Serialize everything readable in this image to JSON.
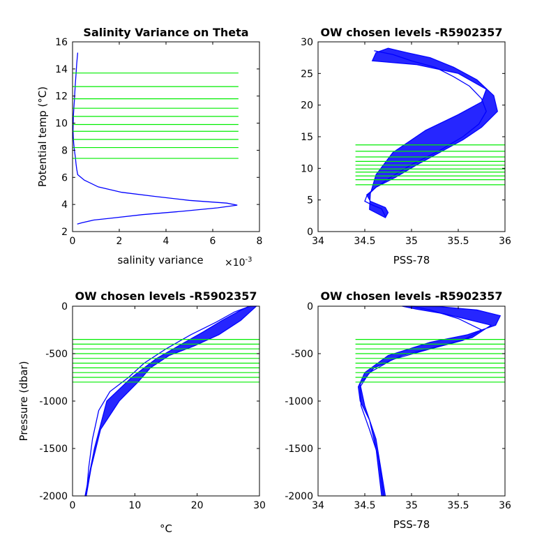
{
  "figure": {
    "background": "#ffffff",
    "level_color": "#00ee00",
    "profile_color": "#0000ff"
  },
  "chart_data": [
    {
      "id": "ax1",
      "type": "line",
      "title": "Salinity Variance on Theta",
      "xlabel": "salinity variance",
      "xexponent": "×10",
      "xexponent_power": "-3",
      "ylabel": "Potential temp (°C)",
      "xlim": [
        0,
        8
      ],
      "ylim": [
        2,
        16
      ],
      "xticks": [
        "0",
        "2",
        "4",
        "6",
        "8"
      ],
      "xtick_values": [
        0,
        2,
        4,
        6,
        8
      ],
      "yticks": [
        "2",
        "4",
        "6",
        "8",
        "10",
        "12",
        "14",
        "16"
      ],
      "ytick_values": [
        2,
        4,
        6,
        8,
        10,
        12,
        14,
        16
      ],
      "xdir": "normal",
      "grid": false,
      "hlines": {
        "range": [
          0,
          7.1
        ],
        "values": [
          7.4,
          8.2,
          8.8,
          9.4,
          9.9,
          10.5,
          11.1,
          11.8,
          12.7,
          13.7
        ]
      },
      "series": [
        {
          "x": [
            0.22,
            0.18,
            0.15,
            0.12,
            0.1,
            0.08,
            0.06,
            0.04,
            0.03,
            0.02,
            0.03,
            0.05,
            0.08,
            0.12,
            0.15,
            0.18,
            0.22,
            0.5,
            1.1,
            2.1,
            3.5,
            5.0,
            6.6,
            7.05,
            6.2,
            4.7,
            3.0,
            1.7,
            0.9,
            0.4,
            0.2
          ],
          "y": [
            15.2,
            14.4,
            13.6,
            12.9,
            12.3,
            11.7,
            11.2,
            10.6,
            10.1,
            9.5,
            9.0,
            8.5,
            8.0,
            7.5,
            7.0,
            6.6,
            6.2,
            5.8,
            5.3,
            4.9,
            4.6,
            4.3,
            4.1,
            3.95,
            3.75,
            3.5,
            3.25,
            3.0,
            2.85,
            2.65,
            2.55
          ]
        }
      ]
    },
    {
      "id": "ax2",
      "type": "line",
      "title": "OW chosen levels -R5902357",
      "xlabel": "PSS-78",
      "ylabel": "",
      "xlim": [
        34,
        36
      ],
      "ylim": [
        0,
        30
      ],
      "xticks": [
        "34",
        "34.5",
        "35",
        "35.5",
        "36"
      ],
      "xtick_values": [
        34,
        34.5,
        35,
        35.5,
        36
      ],
      "yticks": [
        "0",
        "5",
        "10",
        "15",
        "20",
        "25",
        "30"
      ],
      "ytick_values": [
        0,
        5,
        10,
        15,
        20,
        25,
        30
      ],
      "xdir": "normal",
      "grid": false,
      "hlines": {
        "range": [
          34.4,
          36
        ],
        "values": [
          7.4,
          8.2,
          8.8,
          9.4,
          9.9,
          10.5,
          11.1,
          11.8,
          12.7,
          13.7
        ]
      },
      "envelope": {
        "x": [
          34.72,
          34.75,
          34.72,
          34.64,
          34.56,
          34.52,
          34.62,
          34.82,
          35.05,
          35.3,
          35.55,
          35.75,
          35.92,
          35.88,
          35.7,
          35.45,
          35.2,
          34.95,
          34.75,
          34.62,
          34.58,
          35.05,
          35.5,
          35.8,
          35.75,
          35.5,
          35.15,
          34.8,
          34.62,
          34.56,
          34.55
        ],
        "y": [
          2.2,
          3.0,
          3.8,
          4.3,
          4.8,
          5.8,
          7.0,
          8.5,
          10.5,
          12.5,
          14.5,
          16.5,
          19.0,
          21.5,
          24.0,
          26.0,
          27.5,
          28.3,
          29.0,
          28.3,
          27.0,
          26.4,
          25.0,
          22.5,
          20.5,
          18.5,
          16.0,
          12.5,
          9.0,
          6.0,
          3.5
        ]
      },
      "series": [
        {
          "x": [
            34.72,
            34.68,
            34.58,
            34.5,
            34.52,
            34.62,
            34.78,
            35.0,
            35.3,
            35.55,
            35.72,
            35.8,
            35.75,
            35.62,
            35.45,
            35.25,
            35.0,
            34.8,
            34.6
          ],
          "y": [
            2.4,
            3.6,
            4.2,
            4.8,
            5.6,
            7.0,
            8.6,
            10.6,
            12.8,
            15.0,
            17.0,
            19.0,
            21.0,
            23.0,
            24.5,
            26.0,
            27.0,
            28.0,
            28.6
          ]
        }
      ]
    },
    {
      "id": "ax3",
      "type": "line",
      "title": "OW chosen levels -R5902357",
      "xlabel": "°C",
      "ylabel": "Pressure (dbar)",
      "xlim": [
        0,
        30
      ],
      "ylim": [
        -2000,
        0
      ],
      "xticks": [
        "0",
        "10",
        "20",
        "30"
      ],
      "xtick_values": [
        0,
        10,
        20,
        30
      ],
      "yticks": [
        "-2000",
        "-1500",
        "-1000",
        "-500",
        "0"
      ],
      "ytick_values": [
        -2000,
        -1500,
        -1000,
        -500,
        0
      ],
      "xdir": "normal",
      "grid": false,
      "hlines": {
        "range": [
          0,
          30
        ],
        "values": [
          -350,
          -400,
          -450,
          -500,
          -550,
          -600,
          -650,
          -700,
          -750,
          -800
        ]
      },
      "envelope": {
        "x": [
          2.0,
          3.5,
          5.5,
          9.5,
          13.5,
          17.5,
          21.0,
          24.0,
          26.5,
          28.0,
          28.5,
          29.5,
          29.0,
          27.0,
          23.5,
          19.5,
          15.5,
          12.5,
          10.5,
          7.5,
          4.5,
          3.0,
          2.2
        ],
        "y": [
          -2000,
          -1500,
          -1000,
          -750,
          -550,
          -400,
          -270,
          -150,
          -60,
          -10,
          0,
          0,
          -30,
          -150,
          -300,
          -420,
          -520,
          -650,
          -800,
          -1000,
          -1300,
          -1700,
          -2000
        ]
      },
      "series": [
        {
          "x": [
            2.2,
            2.6,
            3.2,
            4.2,
            6.0,
            9.0,
            11.5,
            15.0,
            19.0,
            23.0,
            26.0,
            28.5
          ],
          "y": [
            -2000,
            -1700,
            -1400,
            -1100,
            -900,
            -750,
            -600,
            -450,
            -300,
            -170,
            -60,
            0
          ]
        }
      ]
    },
    {
      "id": "ax4",
      "type": "line",
      "title": "OW chosen levels -R5902357",
      "xlabel": "PSS-78",
      "ylabel": "",
      "xlim": [
        34,
        36
      ],
      "ylim": [
        -2000,
        0
      ],
      "xticks": [
        "34",
        "34.5",
        "35",
        "35.5",
        "36"
      ],
      "xtick_values": [
        34,
        34.5,
        35,
        35.5,
        36
      ],
      "yticks": [
        "-2000",
        "-1500",
        "-1000",
        "-500",
        "0"
      ],
      "ytick_values": [
        -2000,
        -1500,
        -1000,
        -500,
        0
      ],
      "xdir": "normal",
      "grid": false,
      "hlines": {
        "range": [
          34.4,
          36
        ],
        "values": [
          -350,
          -400,
          -450,
          -500,
          -550,
          -600,
          -650,
          -700,
          -750,
          -800
        ]
      },
      "envelope": {
        "x": [
          34.68,
          34.62,
          34.55,
          34.45,
          34.43,
          34.5,
          34.75,
          35.2,
          35.6,
          35.9,
          35.95,
          35.7,
          35.3,
          35.0,
          34.9,
          35.05,
          35.35,
          35.6,
          35.85,
          35.65,
          35.3,
          34.9,
          34.6,
          34.45,
          34.5,
          34.62,
          34.72
        ],
        "y": [
          -2000,
          -1500,
          -1200,
          -1000,
          -850,
          -700,
          -520,
          -380,
          -300,
          -200,
          -100,
          -40,
          -5,
          0,
          0,
          -30,
          -80,
          -140,
          -200,
          -330,
          -420,
          -520,
          -650,
          -820,
          -1050,
          -1400,
          -2000
        ]
      },
      "series": [
        {
          "x": [
            34.7,
            34.65,
            34.55,
            34.46,
            34.45,
            34.55,
            34.8,
            35.2,
            35.55,
            35.75,
            35.5,
            35.2,
            35.0
          ],
          "y": [
            -2000,
            -1600,
            -1300,
            -1050,
            -850,
            -700,
            -560,
            -450,
            -360,
            -250,
            -130,
            -40,
            0
          ]
        }
      ]
    }
  ]
}
